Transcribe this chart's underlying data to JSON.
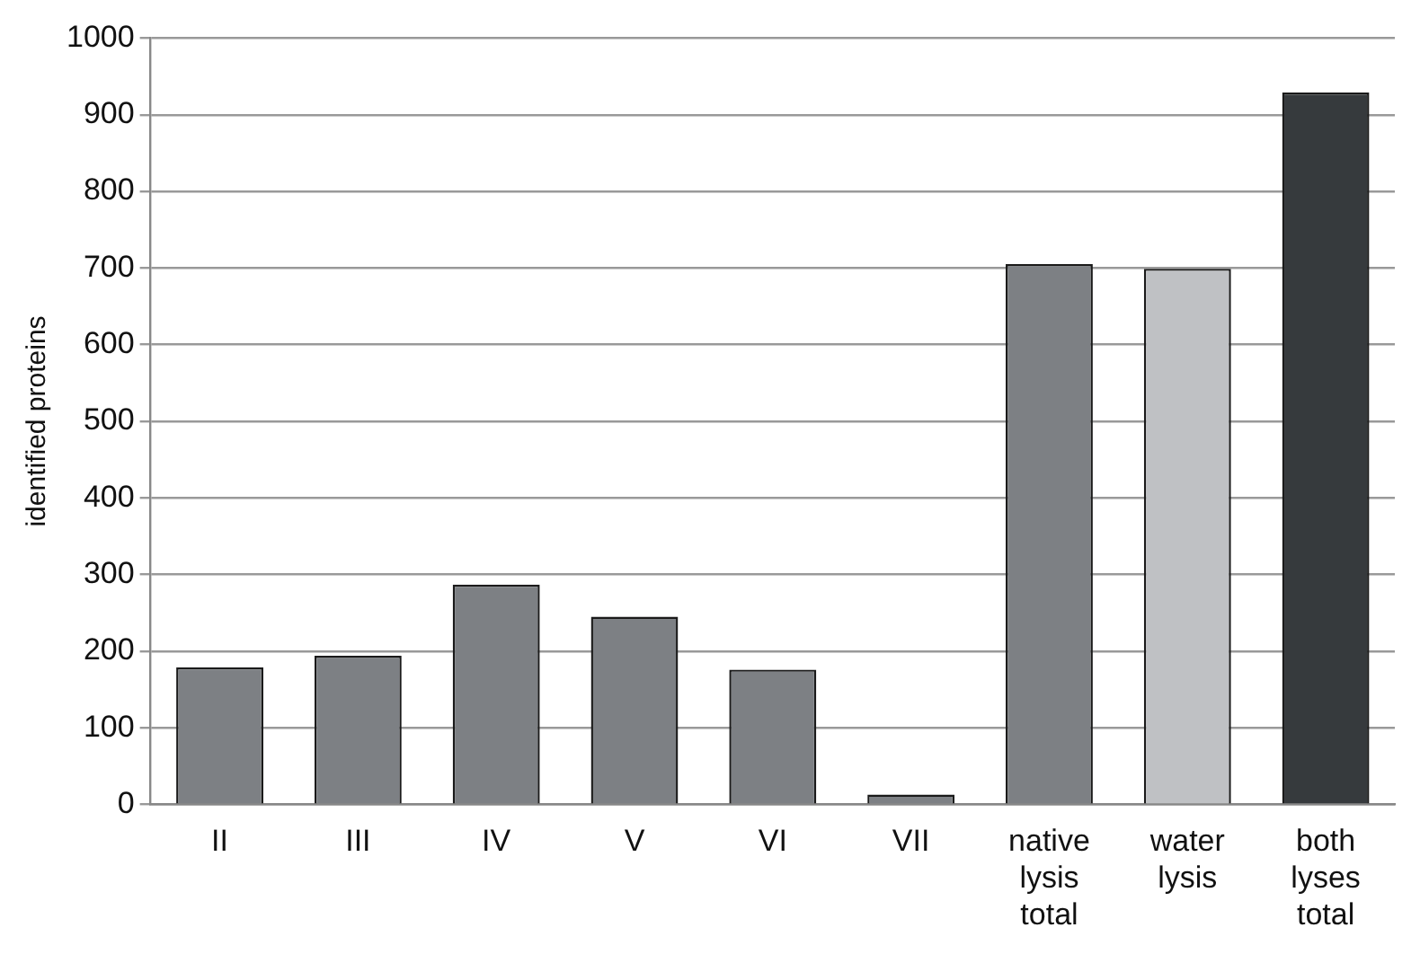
{
  "chart_data": {
    "type": "bar",
    "ylabel": "identified proteins",
    "categories": [
      "II",
      "III",
      "IV",
      "V",
      "VI",
      "VII",
      "native lysis total",
      "water lysis",
      "both lyses total"
    ],
    "values": [
      179,
      194,
      287,
      245,
      176,
      13,
      705,
      699,
      929
    ],
    "colors": [
      "#7d8084",
      "#7d8084",
      "#7d8084",
      "#7d8084",
      "#7d8084",
      "#7d8084",
      "#7d8084",
      "#bfc1c4",
      "#363a3d"
    ],
    "ylim": [
      0,
      1000
    ],
    "yticks": [
      0,
      100,
      200,
      300,
      400,
      500,
      600,
      700,
      800,
      900,
      1000
    ],
    "grid": "y",
    "legend": false
  }
}
